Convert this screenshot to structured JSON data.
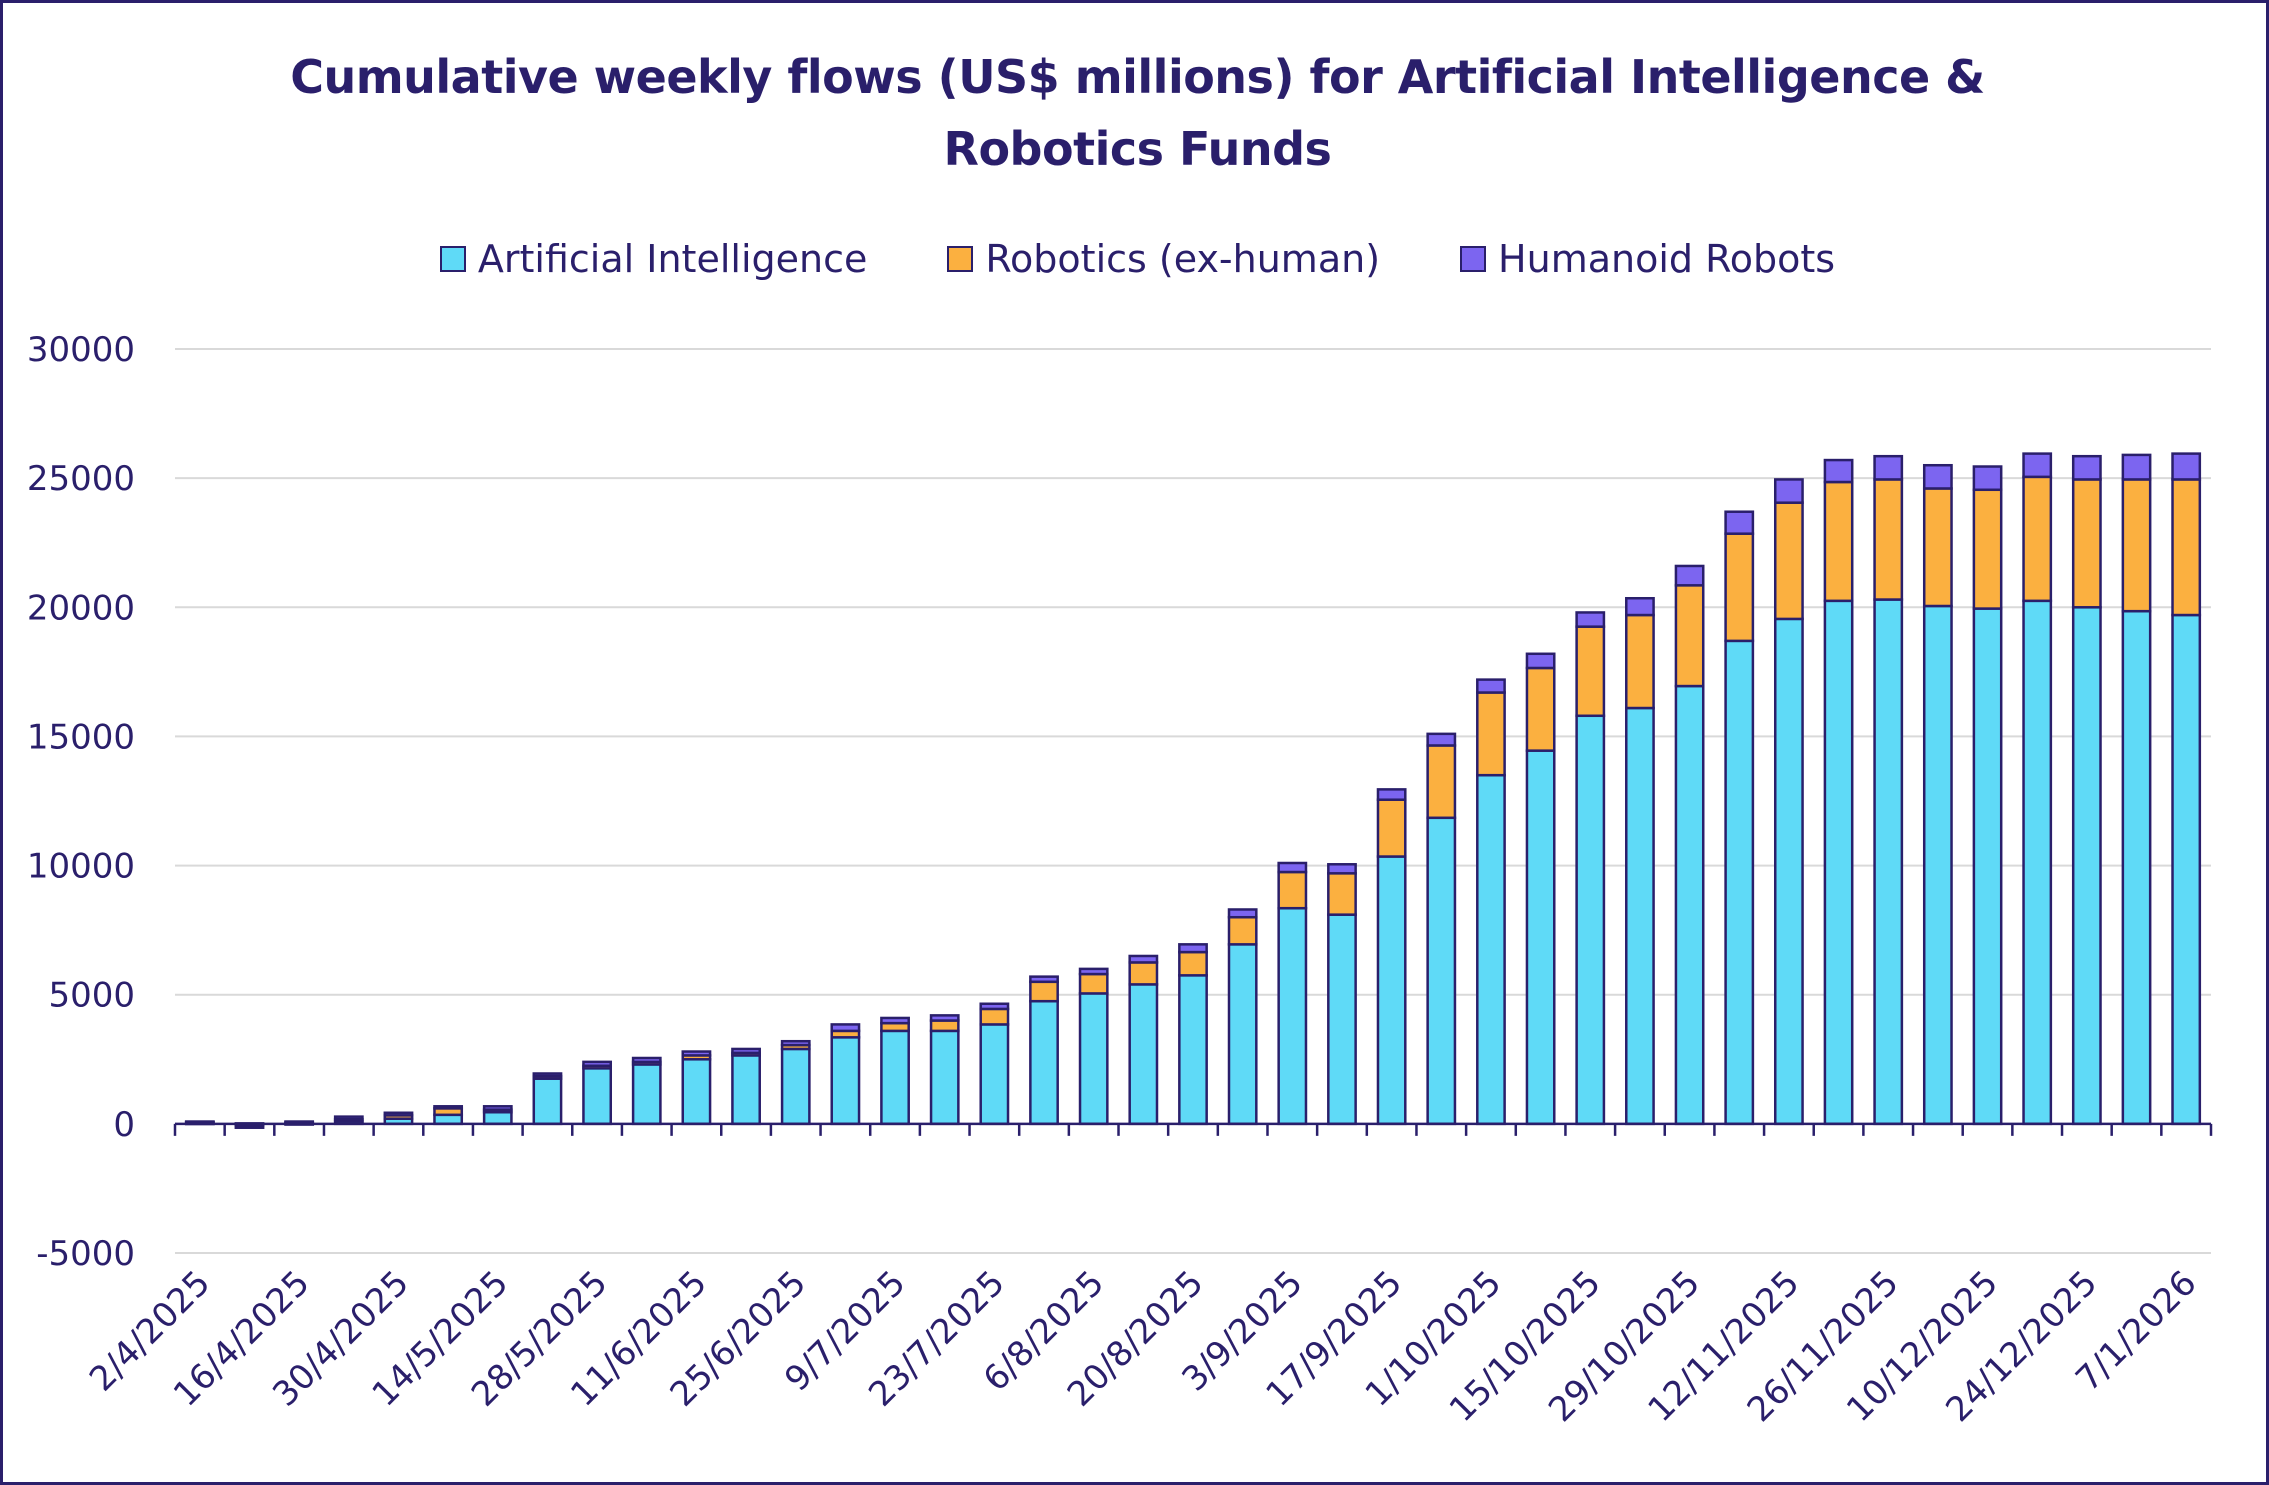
{
  "chart_data": {
    "type": "bar",
    "stacked": true,
    "title_line1": "Cumulative weekly flows (US$ millions) for Artificial Intelligence &",
    "title_line2": "Robotics Funds",
    "xlabel": "",
    "ylabel": "",
    "ylim": [
      -5000,
      30000
    ],
    "yticks": [
      30000,
      25000,
      20000,
      15000,
      10000,
      5000,
      0,
      -5000
    ],
    "grid": true,
    "legend_position": "top",
    "x_tick_labels": [
      "2/4/2025",
      "16/4/2025",
      "30/4/2025",
      "14/5/2025",
      "28/5/2025",
      "11/6/2025",
      "25/6/2025",
      "9/7/2025",
      "23/7/2025",
      "6/8/2025",
      "20/8/2025",
      "3/9/2025",
      "17/9/2025",
      "1/10/2025",
      "15/10/2025",
      "29/10/2025",
      "12/11/2025",
      "26/11/2025",
      "10/12/2025",
      "24/12/2025",
      "7/1/2026"
    ],
    "x_tick_every": 2,
    "num_bars": 41,
    "series": [
      {
        "name": "Artificial Intelligence",
        "color": "#5fdaf7",
        "values": [
          50,
          -150,
          30,
          100,
          200,
          350,
          450,
          1750,
          2150,
          2300,
          2500,
          2650,
          2900,
          3350,
          3600,
          3600,
          3850,
          4750,
          5050,
          5400,
          5750,
          6950,
          8350,
          8100,
          10350,
          11850,
          13500,
          14450,
          15800,
          16100,
          16950,
          18700,
          19550,
          20250,
          20300,
          20050,
          19950,
          20250,
          20000,
          19850,
          19700
        ]
      },
      {
        "name": "Robotics (ex-human)",
        "color": "#fbb040",
        "values": [
          20,
          0,
          30,
          80,
          130,
          250,
          100,
          100,
          100,
          100,
          150,
          100,
          150,
          250,
          300,
          400,
          600,
          750,
          750,
          850,
          900,
          1050,
          1400,
          1600,
          2200,
          2800,
          3200,
          3200,
          3450,
          3600,
          3900,
          4150,
          4500,
          4600,
          4650,
          4550,
          4600,
          4800,
          4950,
          5100,
          5250
        ]
      },
      {
        "name": "Humanoid Robots",
        "color": "#7c65f0",
        "values": [
          20,
          20,
          30,
          100,
          100,
          80,
          130,
          100,
          150,
          150,
          150,
          150,
          150,
          250,
          200,
          200,
          200,
          200,
          200,
          250,
          300,
          300,
          350,
          350,
          400,
          450,
          500,
          550,
          550,
          650,
          750,
          850,
          900,
          850,
          900,
          900,
          900,
          900,
          900,
          950,
          1000
        ]
      }
    ]
  }
}
